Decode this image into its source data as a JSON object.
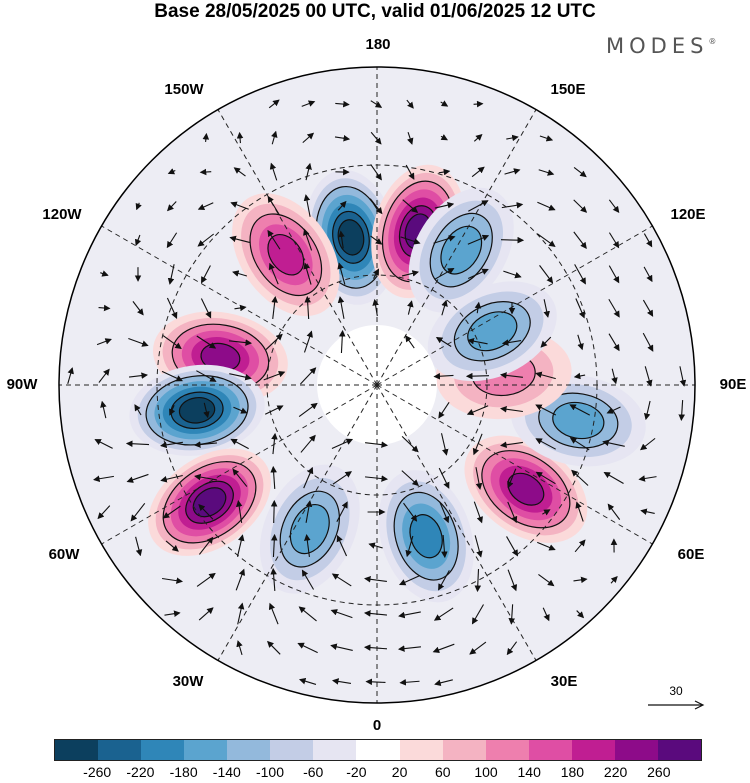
{
  "title": "Base 28/05/2025 00 UTC, valid 01/06/2025 12 UTC",
  "brand": {
    "text": "MODES",
    "mark": "®"
  },
  "lon_labels": {
    "top": "180",
    "top_left": "150W",
    "top_right": "150E",
    "upper_left": "120W",
    "upper_right": "120E",
    "left": "90W",
    "right": "90E",
    "lower_left": "60W",
    "lower_right": "60E",
    "bottom_left": "30W",
    "bottom_right": "30E",
    "bottom": "0"
  },
  "reference_vector": {
    "label": "30"
  },
  "colorbar": {
    "colors": [
      "#0c3f5e",
      "#1a6290",
      "#2f86b8",
      "#5ba4cf",
      "#93b9dc",
      "#c3cde6",
      "#e6e5f2",
      "#ffffff",
      "#fbdada",
      "#f4b3c2",
      "#ee7fae",
      "#df4ea4",
      "#c01e92",
      "#8d0b89",
      "#5a0a7d"
    ],
    "ticks": [
      "-260",
      "-220",
      "-180",
      "-140",
      "-100",
      "-60",
      "-20",
      "20",
      "60",
      "100",
      "140",
      "180",
      "220",
      "260"
    ]
  },
  "chart_data": {
    "type": "heatmap",
    "projection": "north polar stereographic",
    "description_field": "anomaly pattern with wind vectors",
    "anomaly_centres": [
      {
        "lon": -170,
        "lat": 57,
        "sign": "negative",
        "level": -260
      },
      {
        "lon": 165,
        "lat": 55,
        "sign": "positive",
        "level": 260
      },
      {
        "lon": 148,
        "lat": 55,
        "sign": "negative",
        "level": -140
      },
      {
        "lon": -145,
        "lat": 55,
        "sign": "positive",
        "level": 180
      },
      {
        "lon": -100,
        "lat": 55,
        "sign": "positive",
        "level": 220
      },
      {
        "lon": -82,
        "lat": 50,
        "sign": "negative",
        "level": -260
      },
      {
        "lon": -55,
        "lat": 45,
        "sign": "positive",
        "level": 260
      },
      {
        "lon": -25,
        "lat": 55,
        "sign": "negative",
        "level": -140
      },
      {
        "lon": 18,
        "lat": 55,
        "sign": "negative",
        "level": -180
      },
      {
        "lon": 55,
        "lat": 50,
        "sign": "positive",
        "level": 220
      },
      {
        "lon": 80,
        "lat": 45,
        "sign": "negative",
        "level": -140
      },
      {
        "lon": 95,
        "lat": 62,
        "sign": "positive",
        "level": 100
      },
      {
        "lon": 115,
        "lat": 62,
        "sign": "negative",
        "level": -140
      }
    ]
  }
}
